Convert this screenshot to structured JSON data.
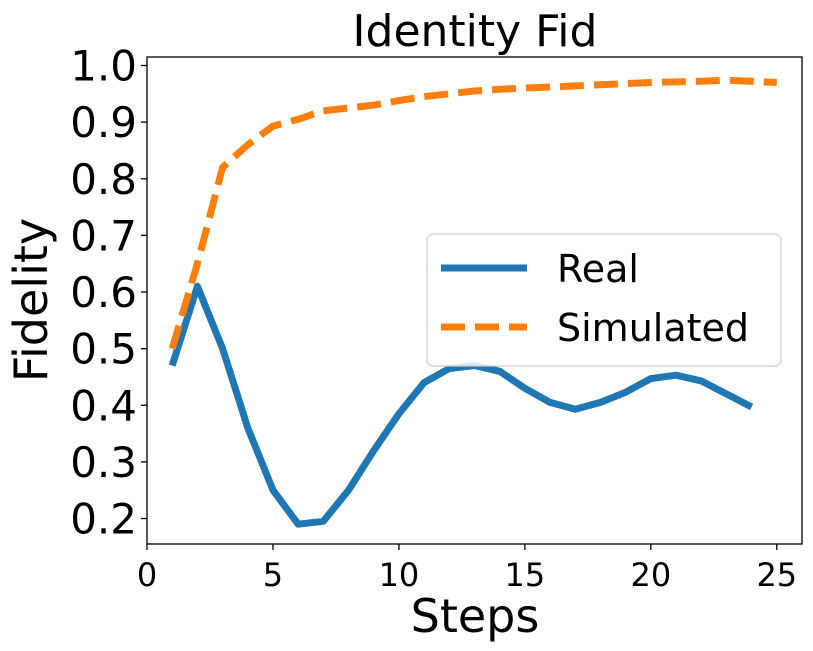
{
  "chart_data": {
    "type": "line",
    "title": "Identity Fid",
    "xlabel": "Steps",
    "ylabel": "Fidelity",
    "xlim": [
      0,
      26
    ],
    "ylim": [
      0.155,
      1.015
    ],
    "xticks": [
      "0",
      "5",
      "10",
      "15",
      "20",
      "25"
    ],
    "yticks": [
      "0.2",
      "0.3",
      "0.4",
      "0.5",
      "0.6",
      "0.7",
      "0.8",
      "0.9",
      "1.0"
    ],
    "grid": false,
    "legend_position": "center-right",
    "series": [
      {
        "name": "Real",
        "color": "#1f77b4",
        "style": "solid",
        "x": [
          1,
          2,
          3,
          4,
          5,
          6,
          7,
          8,
          9,
          10,
          11,
          12,
          13,
          14,
          15,
          16,
          17,
          18,
          19,
          20,
          21,
          22,
          23,
          24
        ],
        "y": [
          0.47,
          0.61,
          0.5,
          0.36,
          0.25,
          0.19,
          0.195,
          0.25,
          0.32,
          0.385,
          0.44,
          0.465,
          0.47,
          0.46,
          0.43,
          0.405,
          0.393,
          0.405,
          0.423,
          0.447,
          0.453,
          0.443,
          0.42,
          0.397
        ]
      },
      {
        "name": "Simulated",
        "color": "#ff7f0e",
        "style": "dashed",
        "x": [
          1,
          2,
          3,
          4,
          5,
          6,
          7,
          8,
          9,
          10,
          11,
          12,
          13,
          14,
          15,
          16,
          17,
          18,
          19,
          20,
          21,
          22,
          23,
          24,
          25
        ],
        "y": [
          0.5,
          0.65,
          0.82,
          0.86,
          0.893,
          0.905,
          0.92,
          0.925,
          0.93,
          0.938,
          0.945,
          0.95,
          0.955,
          0.958,
          0.96,
          0.962,
          0.964,
          0.966,
          0.968,
          0.97,
          0.971,
          0.972,
          0.974,
          0.972,
          0.97
        ]
      }
    ]
  }
}
